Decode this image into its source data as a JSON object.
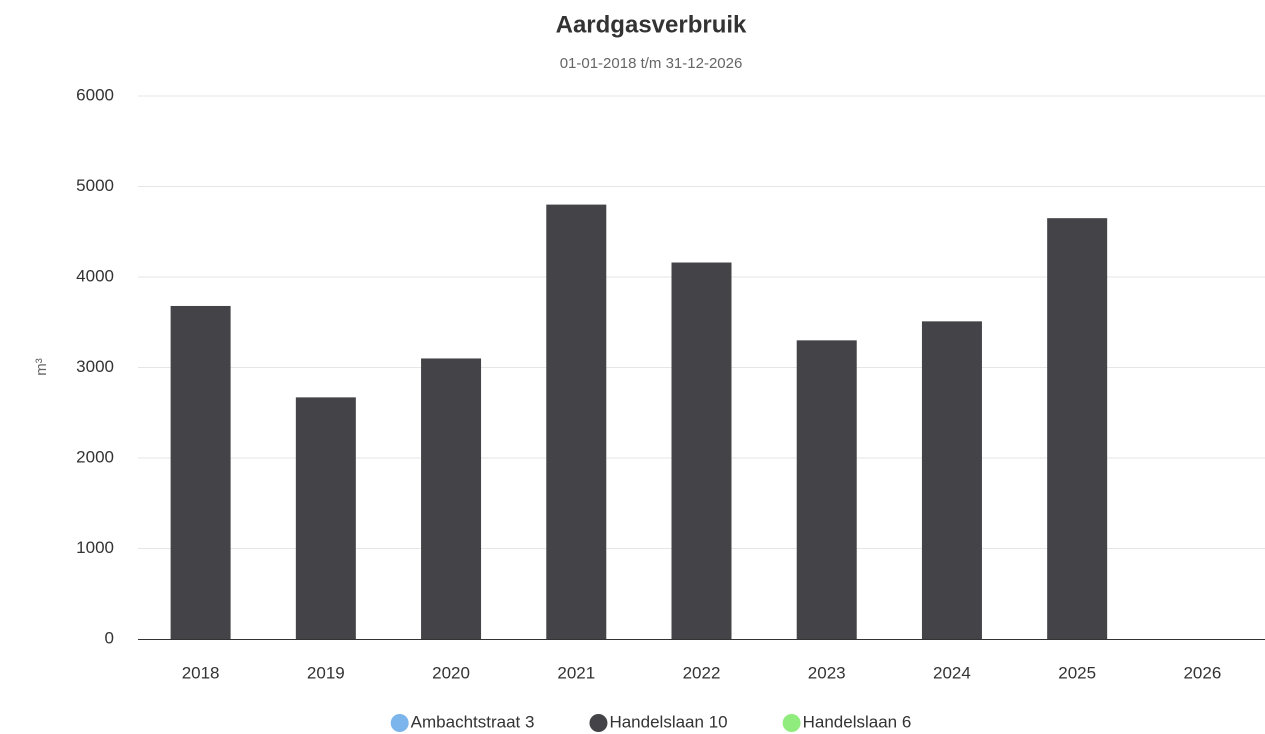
{
  "chart_data": {
    "type": "bar",
    "stacked": true,
    "title": "Aardgasverbruik",
    "subtitle": "01-01-2018 t/m 31-12-2026",
    "y_label": "m³",
    "categories": [
      "2018",
      "2019",
      "2020",
      "2021",
      "2022",
      "2023",
      "2024",
      "2025",
      "2026"
    ],
    "series": [
      {
        "name": "Ambachtstraat 3",
        "color": "#7cb5ec",
        "values": [
          0,
          0,
          0,
          0,
          0,
          0,
          0,
          0,
          0
        ]
      },
      {
        "name": "Handelslaan 10",
        "color": "#434348",
        "values": [
          3680,
          2670,
          3100,
          4800,
          4160,
          3300,
          3510,
          4650,
          0
        ]
      },
      {
        "name": "Handelslaan 6",
        "color": "#90ed7d",
        "values": [
          0,
          0,
          0,
          0,
          0,
          0,
          0,
          0,
          0
        ]
      }
    ],
    "ylim": [
      0,
      6000
    ],
    "yticks": [
      0,
      1000,
      2000,
      3000,
      4000,
      5000,
      6000
    ],
    "grid": true
  }
}
